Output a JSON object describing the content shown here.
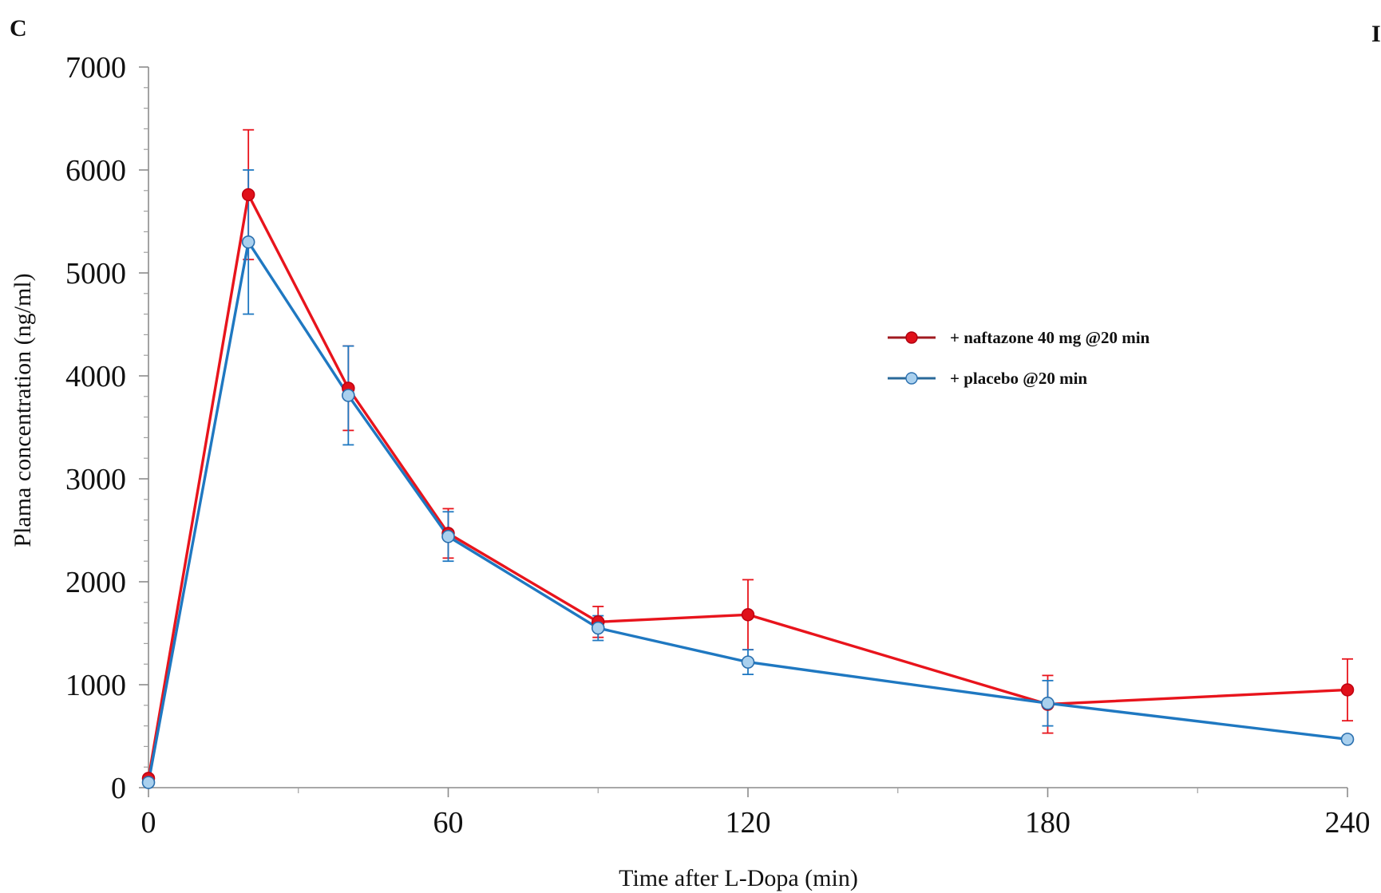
{
  "panel_letter": "C",
  "edge_letter": "I",
  "chart_data": {
    "type": "line",
    "title": "",
    "xlabel": "Time after L-Dopa (min)",
    "ylabel": "Plama concentration (ng/ml)",
    "xlim": [
      0,
      240
    ],
    "ylim": [
      0,
      7000
    ],
    "xticks": [
      0,
      60,
      120,
      180,
      240
    ],
    "xtick_labels": [
      "0",
      "60",
      "120",
      "180",
      "240"
    ],
    "yticks": [
      0,
      1000,
      2000,
      3000,
      4000,
      5000,
      6000,
      7000
    ],
    "ytick_labels": [
      "0",
      "1000",
      "2000",
      "3000",
      "4000",
      "5000",
      "6000",
      "7000"
    ],
    "grid": false,
    "legend_position": "right",
    "series": [
      {
        "name": "+ naftazone 40 mg @20 min",
        "color": "#e8141c",
        "marker": "filled-circle",
        "x": [
          0,
          20,
          40,
          60,
          90,
          120,
          180,
          240
        ],
        "y": [
          90,
          5760,
          3880,
          2470,
          1610,
          1680,
          810,
          950
        ],
        "error": [
          0,
          630,
          410,
          240,
          150,
          340,
          280,
          300
        ]
      },
      {
        "name": "+ placebo @20 min",
        "color": "#1f78c1",
        "marker": "light-circle",
        "x": [
          0,
          20,
          40,
          60,
          90,
          120,
          180,
          240
        ],
        "y": [
          50,
          5300,
          3810,
          2440,
          1550,
          1220,
          820,
          470
        ],
        "error": [
          0,
          700,
          480,
          240,
          120,
          120,
          220,
          0
        ]
      }
    ]
  }
}
